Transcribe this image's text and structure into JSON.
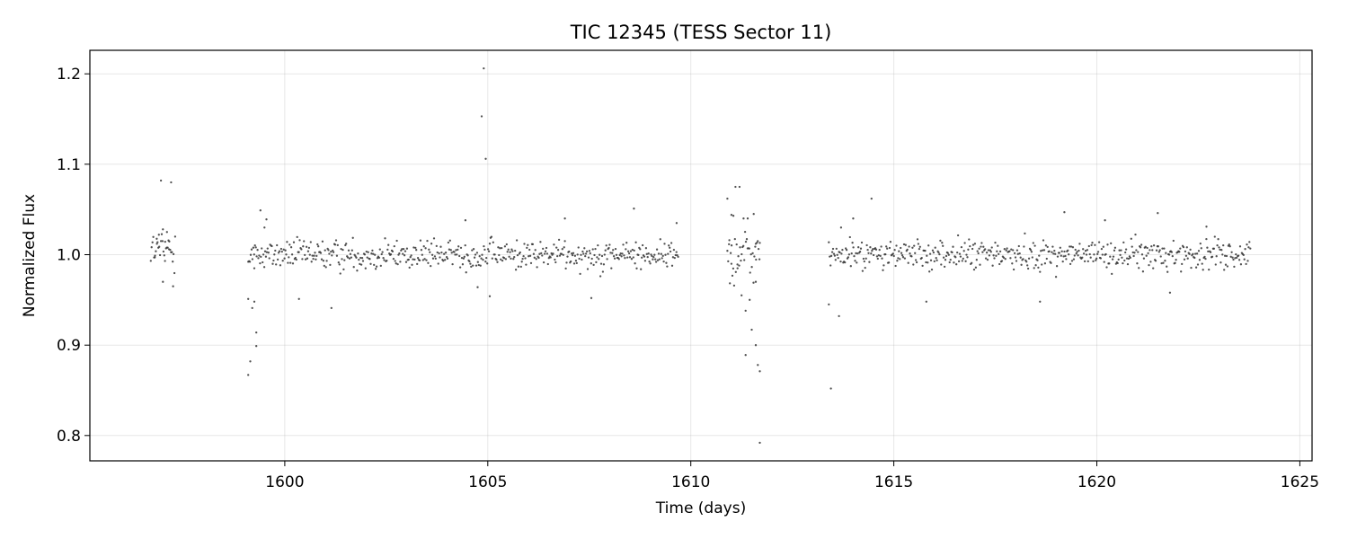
{
  "chart_data": {
    "type": "scatter",
    "title": "TIC 12345 (TESS Sector 11)",
    "xlabel": "Time (days)",
    "ylabel": "Normalized Flux",
    "xlim": [
      1595.2,
      1625.3
    ],
    "ylim": [
      0.772,
      1.226
    ],
    "xticks": [
      1600,
      1605,
      1610,
      1615,
      1620,
      1625
    ],
    "xtick_labels": [
      "1600",
      "1605",
      "1610",
      "1615",
      "1620",
      "1625"
    ],
    "yticks": [
      0.8,
      0.9,
      1.0,
      1.1,
      1.2
    ],
    "ytick_labels": [
      "0.8",
      "0.9",
      "1.0",
      "1.1",
      "1.2"
    ],
    "grid": true,
    "legend": "none",
    "marker_color": "#333333",
    "segments": [
      {
        "x_start": 1596.7,
        "x_end": 1597.3,
        "mean": 1.005,
        "scatter": 0.022
      },
      {
        "x_start": 1599.1,
        "x_end": 1609.7,
        "mean": 1.0,
        "scatter": 0.016
      },
      {
        "x_start": 1610.9,
        "x_end": 1611.7,
        "mean": 1.0,
        "scatter": 0.03
      },
      {
        "x_start": 1613.4,
        "x_end": 1623.8,
        "mean": 1.0,
        "scatter": 0.016
      }
    ],
    "points": [
      {
        "x": 1596.95,
        "y": 1.082
      },
      {
        "x": 1597.2,
        "y": 1.08
      },
      {
        "x": 1596.9,
        "y": 1.022
      },
      {
        "x": 1597.0,
        "y": 1.028
      },
      {
        "x": 1597.1,
        "y": 1.025
      },
      {
        "x": 1597.3,
        "y": 1.02
      },
      {
        "x": 1596.8,
        "y": 0.997
      },
      {
        "x": 1597.05,
        "y": 0.993
      },
      {
        "x": 1597.0,
        "y": 0.97
      },
      {
        "x": 1597.25,
        "y": 0.965
      },
      {
        "x": 1596.85,
        "y": 1.012
      },
      {
        "x": 1597.15,
        "y": 1.006
      },
      {
        "x": 1599.1,
        "y": 0.951
      },
      {
        "x": 1599.15,
        "y": 0.882
      },
      {
        "x": 1599.1,
        "y": 0.867
      },
      {
        "x": 1599.2,
        "y": 0.941
      },
      {
        "x": 1599.25,
        "y": 0.948
      },
      {
        "x": 1599.3,
        "y": 0.914
      },
      {
        "x": 1599.3,
        "y": 0.899
      },
      {
        "x": 1599.25,
        "y": 0.985
      },
      {
        "x": 1599.4,
        "y": 1.049
      },
      {
        "x": 1599.55,
        "y": 1.039
      },
      {
        "x": 1599.5,
        "y": 1.03
      },
      {
        "x": 1604.9,
        "y": 1.206
      },
      {
        "x": 1604.85,
        "y": 1.153
      },
      {
        "x": 1604.95,
        "y": 1.106
      },
      {
        "x": 1605.05,
        "y": 0.954
      },
      {
        "x": 1604.75,
        "y": 0.964
      },
      {
        "x": 1604.45,
        "y": 1.038
      },
      {
        "x": 1606.9,
        "y": 1.04
      },
      {
        "x": 1608.6,
        "y": 1.051
      },
      {
        "x": 1609.65,
        "y": 1.035
      },
      {
        "x": 1607.55,
        "y": 0.952
      },
      {
        "x": 1600.35,
        "y": 0.951
      },
      {
        "x": 1601.15,
        "y": 0.941
      },
      {
        "x": 1610.9,
        "y": 1.062
      },
      {
        "x": 1611.0,
        "y": 1.044
      },
      {
        "x": 1611.05,
        "y": 1.043
      },
      {
        "x": 1611.1,
        "y": 1.075
      },
      {
        "x": 1611.2,
        "y": 1.075
      },
      {
        "x": 1611.3,
        "y": 1.04
      },
      {
        "x": 1611.4,
        "y": 1.04
      },
      {
        "x": 1611.55,
        "y": 1.045
      },
      {
        "x": 1610.95,
        "y": 1.016
      },
      {
        "x": 1611.6,
        "y": 1.012
      },
      {
        "x": 1611.7,
        "y": 1.013
      },
      {
        "x": 1611.0,
        "y": 0.99
      },
      {
        "x": 1611.15,
        "y": 0.985
      },
      {
        "x": 1611.25,
        "y": 0.955
      },
      {
        "x": 1611.35,
        "y": 0.938
      },
      {
        "x": 1611.45,
        "y": 0.95
      },
      {
        "x": 1611.5,
        "y": 0.917
      },
      {
        "x": 1611.35,
        "y": 0.889
      },
      {
        "x": 1611.6,
        "y": 0.9
      },
      {
        "x": 1611.65,
        "y": 0.878
      },
      {
        "x": 1611.7,
        "y": 0.871
      },
      {
        "x": 1611.7,
        "y": 0.792
      },
      {
        "x": 1611.6,
        "y": 0.97
      },
      {
        "x": 1613.4,
        "y": 0.945
      },
      {
        "x": 1613.45,
        "y": 0.852
      },
      {
        "x": 1613.65,
        "y": 0.932
      },
      {
        "x": 1614.45,
        "y": 1.062
      },
      {
        "x": 1619.2,
        "y": 1.047
      },
      {
        "x": 1621.5,
        "y": 1.046
      },
      {
        "x": 1618.6,
        "y": 0.948
      },
      {
        "x": 1615.8,
        "y": 0.948
      },
      {
        "x": 1621.8,
        "y": 0.958
      },
      {
        "x": 1613.7,
        "y": 1.03
      },
      {
        "x": 1614.0,
        "y": 1.04
      },
      {
        "x": 1620.2,
        "y": 1.038
      },
      {
        "x": 1622.7,
        "y": 1.031
      }
    ]
  }
}
